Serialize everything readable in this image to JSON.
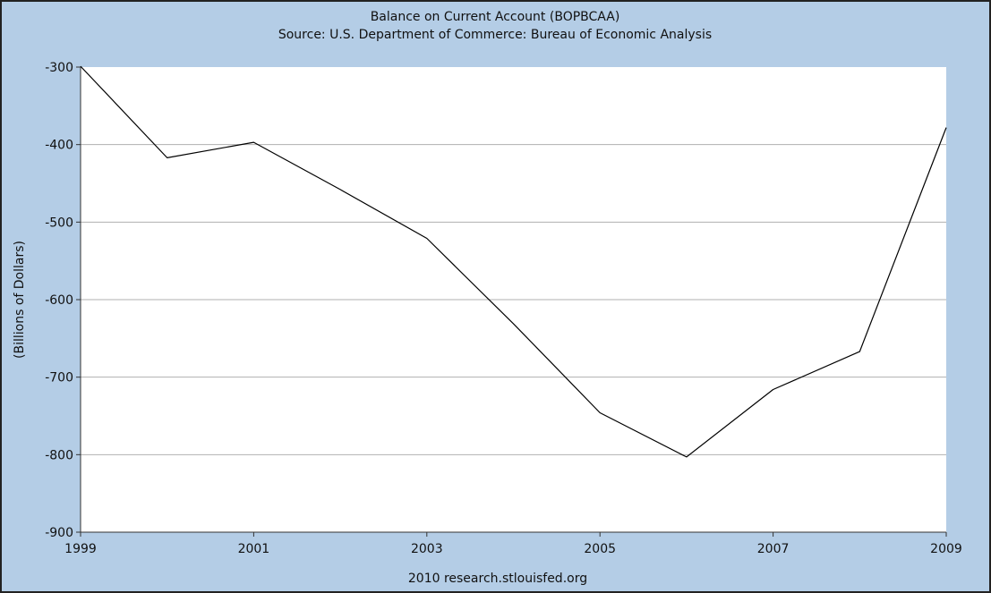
{
  "chart_data": {
    "type": "line",
    "title": "Balance on Current Account (BOPBCAA)",
    "subtitle": "Source: U.S. Department of Commerce: Bureau of Economic Analysis",
    "xlabel": "",
    "ylabel": "(Billions of Dollars)",
    "footer": "2010 research.stlouisfed.org",
    "xlim": [
      1999,
      2009
    ],
    "ylim": [
      -900,
      -300
    ],
    "x_ticks": [
      "1999",
      "2001",
      "2003",
      "2005",
      "2007",
      "2009"
    ],
    "y_ticks": [
      "-300",
      "-400",
      "-500",
      "-600",
      "-700",
      "-800",
      "-900"
    ],
    "grid": true,
    "series": [
      {
        "x": [
          1999,
          2000,
          2001,
          2002,
          2003,
          2004,
          2005,
          2006,
          2007,
          2008,
          2009
        ],
        "values": [
          -299,
          -417,
          -397,
          -458,
          -521,
          -631,
          -746,
          -803,
          -716,
          -667,
          -378
        ]
      }
    ],
    "colors": {
      "background": "#b4cde6",
      "plot": "#ffffff",
      "line": "#000000",
      "grid": "#b0b0b0"
    }
  }
}
